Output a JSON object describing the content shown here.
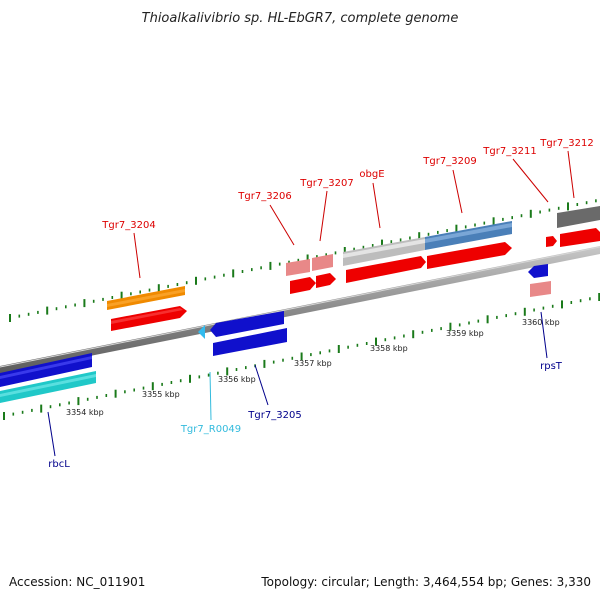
{
  "title": "Thioalkalivibrio sp. HL-EbGR7, complete genome",
  "footer": {
    "accession": "Accession: NC_011901",
    "summary": "Topology: circular; Length: 3,464,554 bp; Genes: 3,330"
  },
  "colors": {
    "top_strand_label": "#dd0000",
    "bottom_strand_label": "#00008b",
    "rna_label": "#33bbdd"
  },
  "tick_labels": [
    "3354 kbp",
    "3355 kbp",
    "3356 kbp",
    "3357 kbp",
    "3358 kbp",
    "3359 kbp",
    "3360 kbp"
  ],
  "genes": {
    "tgr7_3204": "Tgr7_3204",
    "tgr7_3206": "Tgr7_3206",
    "tgr7_3207": "Tgr7_3207",
    "obge": "obgE",
    "tgr7_3209": "Tgr7_3209",
    "tgr7_3211": "Tgr7_3211",
    "tgr7_3212": "Tgr7_3212",
    "rbcl": "rbcL",
    "tgr7_r0049": "Tgr7_R0049",
    "tgr7_3205": "Tgr7_3205",
    "rpst": "rpsT"
  }
}
